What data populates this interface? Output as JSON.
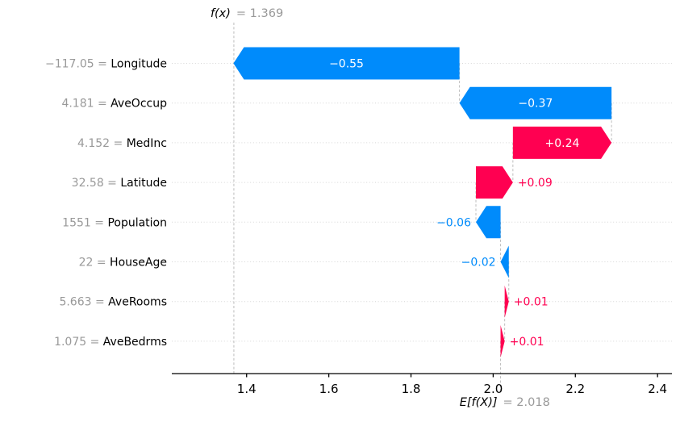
{
  "chart_data": {
    "type": "bar",
    "subtype": "shap-waterfall",
    "fx_value": 1.369,
    "fx_label_name": "f(x)",
    "fx_label_eq": "= 1.369",
    "base_value": 2.018,
    "base_label_name": "E[f(X)]",
    "base_label_eq": "= 2.018",
    "features": [
      {
        "value_label": "−117.05",
        "name": "Longitude",
        "shap": -0.55,
        "bar_label": "−0.55",
        "label_inside": true
      },
      {
        "value_label": "4.181",
        "name": "AveOccup",
        "shap": -0.37,
        "bar_label": "−0.37",
        "label_inside": true
      },
      {
        "value_label": "4.152",
        "name": "MedInc",
        "shap": 0.24,
        "bar_label": "+0.24",
        "label_inside": true
      },
      {
        "value_label": "32.58",
        "name": "Latitude",
        "shap": 0.09,
        "bar_label": "+0.09",
        "label_inside": false
      },
      {
        "value_label": "1551",
        "name": "Population",
        "shap": -0.06,
        "bar_label": "−0.06",
        "label_inside": false
      },
      {
        "value_label": "22",
        "name": "HouseAge",
        "shap": -0.02,
        "bar_label": "−0.02",
        "label_inside": false
      },
      {
        "value_label": "5.663",
        "name": "AveRooms",
        "shap": 0.01,
        "bar_label": "+0.01",
        "label_inside": false
      },
      {
        "value_label": "1.075",
        "name": "AveBedrms",
        "shap": 0.01,
        "bar_label": "+0.01",
        "label_inside": false
      }
    ],
    "x_ticks": [
      1.4,
      1.6,
      1.8,
      2.0,
      2.2,
      2.4
    ],
    "x_tick_labels": [
      "1.4",
      "1.6",
      "1.8",
      "2.0",
      "2.2",
      "2.4"
    ],
    "xlim": [
      1.218,
      2.435
    ],
    "grid": true,
    "legend": "none",
    "colors": {
      "positive": "#ff0051",
      "negative": "#008bfb",
      "label_gray": "#999999",
      "text_black": "#000000",
      "gridline": "#d6d6d6",
      "connector": "#bdbdbd",
      "axis": "#000000"
    }
  }
}
